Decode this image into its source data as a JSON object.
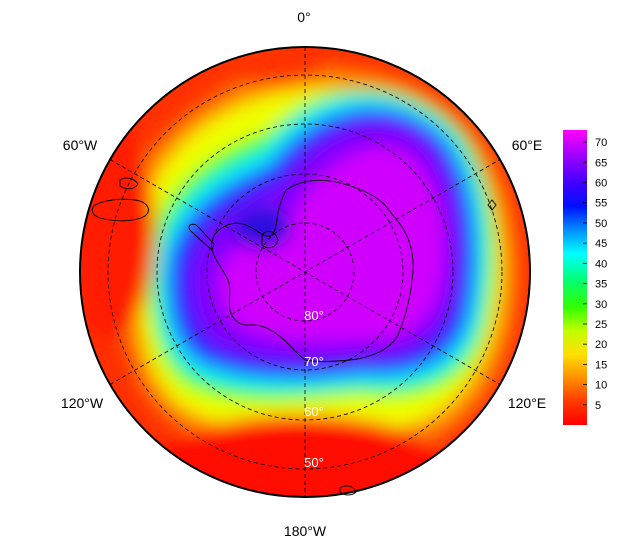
{
  "map": {
    "projection": "south polar stereographic",
    "longitude_labels": [
      "0°",
      "60°E",
      "120°E",
      "180°W",
      "120°W",
      "60°W"
    ],
    "latitude_labels": [
      "80°",
      "70°",
      "60°",
      "50°"
    ],
    "colorbar": {
      "ticks": [
        "70",
        "65",
        "60",
        "55",
        "50",
        "45",
        "40",
        "35",
        "30",
        "25",
        "20",
        "15",
        "10",
        "5"
      ],
      "min": 0,
      "max": 73,
      "colors": [
        "#ff0000",
        "#ff4000",
        "#ff8000",
        "#ffbf00",
        "#ffff00",
        "#80ff00",
        "#00ff00",
        "#00ff80",
        "#00ffff",
        "#0080ff",
        "#0000ff",
        "#4000ff",
        "#8000ff",
        "#ff00ff"
      ]
    },
    "field_description_colors": {
      "polar_vortex_core": "#c800ff",
      "vortex_edge": "#1a1aff",
      "midlatitude_low": "#ff2000"
    }
  }
}
